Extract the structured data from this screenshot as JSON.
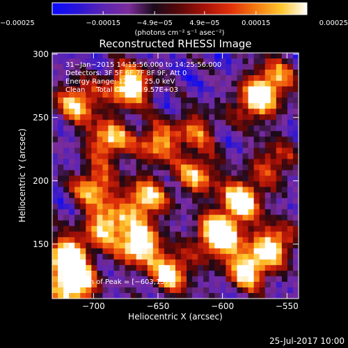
{
  "chart_data": {
    "type": "heatmap",
    "title": "Reconstructed RHESSI Image",
    "xlabel": "Heliocentric X (arcsec)",
    "ylabel": "Heliocentric Y (arcsec)",
    "xlim": [
      -732,
      -541
    ],
    "ylim": [
      107,
      301
    ],
    "x_ticks": [
      {
        "value": -700,
        "label": "−700"
      },
      {
        "value": -650,
        "label": "−650"
      },
      {
        "value": -600,
        "label": "−600"
      },
      {
        "value": -550,
        "label": "−550"
      }
    ],
    "y_ticks": [
      {
        "value": 150,
        "label": "150"
      },
      {
        "value": 200,
        "label": "200"
      },
      {
        "value": 250,
        "label": "250"
      },
      {
        "value": 300,
        "label": "300"
      }
    ],
    "colorbar": {
      "range": [
        -0.00025,
        0.00025
      ],
      "colors": [
        "#0a0aff",
        "#2a15d6",
        "#5a24b4",
        "#7c2c9a",
        "#1a0a1a",
        "#5a0808",
        "#a81208",
        "#e0300a",
        "#f57a10",
        "#ffc62e",
        "#ffffff"
      ],
      "unit_label": "(photons cm⁻² s⁻¹ asec⁻²)",
      "ticks": [
        {
          "value": -0.00025,
          "label": "−0.00025"
        },
        {
          "value": -0.00015,
          "label": "−0.00015"
        },
        {
          "value": -4.9e-05,
          "label": "−4.9e−05"
        },
        {
          "value": 4.9e-05,
          "label": "4.9e−05"
        },
        {
          "value": 0.00015,
          "label": "0.00015"
        },
        {
          "value": 0.00025,
          "label": "0.00025"
        }
      ]
    },
    "annotations": [
      "31−Jan−2015 14:15:56.000 to 14:25:56.000",
      "Detectors: 3F 5F 6F 7F 8F 9F, Att 0",
      "Energy Range: 12.0 − 25.0 keV",
      "Clean     Total Counts: 9.57E+03"
    ],
    "peak_label": "Position of Peak = [−603,157]",
    "peak": [
      -603,
      157
    ],
    "blobs": [
      {
        "x": -712,
        "y": 262,
        "amp": 1.5
      },
      {
        "x": -672,
        "y": 275,
        "amp": 1.9
      },
      {
        "x": -688,
        "y": 232,
        "amp": 1.5
      },
      {
        "x": -650,
        "y": 230,
        "amp": 1.3
      },
      {
        "x": -575,
        "y": 262,
        "amp": 1.5
      },
      {
        "x": -560,
        "y": 280,
        "amp": 1.3
      },
      {
        "x": -620,
        "y": 240,
        "amp": 1.0
      },
      {
        "x": -700,
        "y": 195,
        "amp": 1.4
      },
      {
        "x": -660,
        "y": 185,
        "amp": 1.6
      },
      {
        "x": -690,
        "y": 165,
        "amp": 1.5
      },
      {
        "x": -720,
        "y": 140,
        "amp": 2.0
      },
      {
        "x": -715,
        "y": 118,
        "amp": 2.0
      },
      {
        "x": -665,
        "y": 150,
        "amp": 1.9
      },
      {
        "x": -640,
        "y": 128,
        "amp": 1.6
      },
      {
        "x": -603,
        "y": 157,
        "amp": 2.3
      },
      {
        "x": -585,
        "y": 185,
        "amp": 1.8
      },
      {
        "x": -580,
        "y": 130,
        "amp": 1.7
      },
      {
        "x": -560,
        "y": 150,
        "amp": 1.5
      },
      {
        "x": -620,
        "y": 205,
        "amp": 1.3
      },
      {
        "x": -560,
        "y": 215,
        "amp": 1.0
      }
    ]
  },
  "footer": {
    "timestamp": "25-Jul-2017 10:00"
  }
}
